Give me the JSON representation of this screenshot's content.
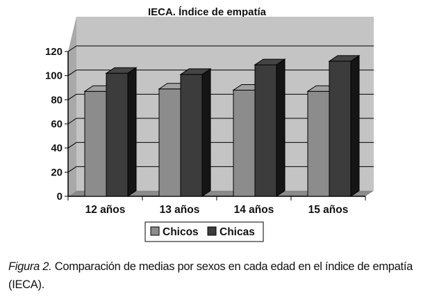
{
  "chart_data": {
    "type": "bar",
    "title": "IECA. Índice de empatía",
    "categories": [
      "12 años",
      "13 años",
      "14 años",
      "15 años"
    ],
    "series": [
      {
        "name": "Chicos",
        "values": [
          87,
          89,
          88,
          87
        ],
        "color": "#8c8c8c"
      },
      {
        "name": "Chicas",
        "values": [
          102,
          101,
          109,
          112
        ],
        "color": "#3c3c3c"
      }
    ],
    "xlabel": "",
    "ylabel": "",
    "ylim": [
      0,
      120
    ],
    "yticks": [
      0,
      20,
      40,
      60,
      80,
      100,
      120
    ],
    "grid": true,
    "three_d": true,
    "legend": "bottom",
    "plot_background": "#c4c4c4"
  },
  "caption": {
    "label": "Figura 2.",
    "text": " Comparación de medias por sexos en cada edad en el índice de empatía (IECA)."
  }
}
